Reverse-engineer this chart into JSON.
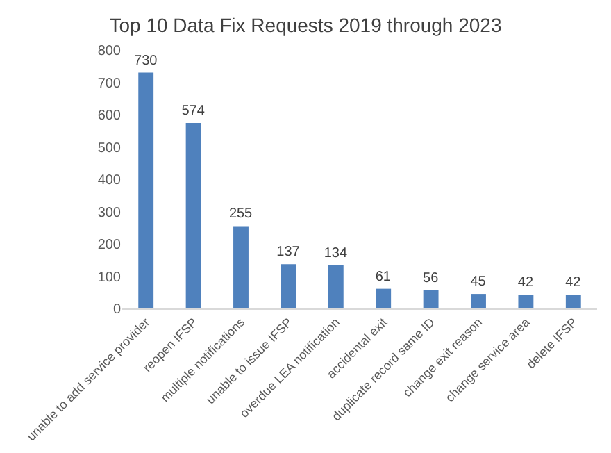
{
  "chart_data": {
    "type": "bar",
    "title": "Top 10 Data Fix Requests 2019 through 2023",
    "categories": [
      "unable to add service provider",
      "reopen IFSP",
      "multiple notifications",
      "unable to issue IFSP",
      "overdue LEA notification",
      "accidental exit",
      "duplicate record same ID",
      "change exit reason",
      "change service area",
      "delete IFSP"
    ],
    "values": [
      730,
      574,
      255,
      137,
      134,
      61,
      56,
      45,
      42,
      42
    ],
    "color": "#4f81bd",
    "ylim": [
      0,
      800
    ],
    "yticks": [
      0,
      100,
      200,
      300,
      400,
      500,
      600,
      700,
      800
    ],
    "grid": false,
    "data_labels": true
  }
}
